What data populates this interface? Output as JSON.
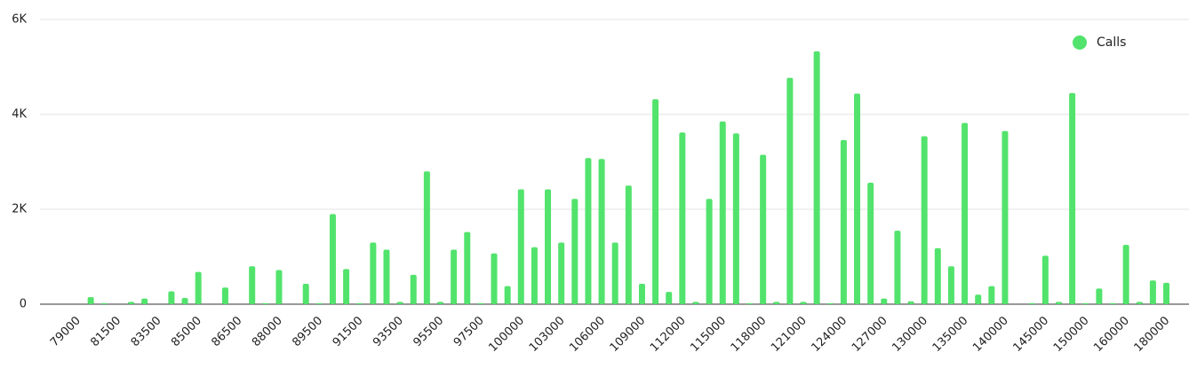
{
  "chart_data": {
    "type": "bar",
    "categories": [
      "79000",
      null,
      null,
      "81500",
      null,
      null,
      "83500",
      null,
      null,
      "85000",
      null,
      null,
      "86500",
      null,
      null,
      "88000",
      null,
      null,
      "89500",
      null,
      null,
      "91500",
      null,
      null,
      "93500",
      null,
      null,
      "95500",
      null,
      null,
      "97500",
      null,
      null,
      "100000",
      null,
      null,
      "103000",
      null,
      null,
      "106000",
      null,
      null,
      "109000",
      null,
      null,
      "112000",
      null,
      null,
      "115000",
      null,
      null,
      "118000",
      null,
      null,
      "121000",
      null,
      null,
      "124000",
      null,
      null,
      "127000",
      null,
      null,
      "130000",
      null,
      null,
      "135000",
      null,
      null,
      "140000",
      null,
      null,
      "145000",
      null,
      null,
      "150000",
      null,
      null,
      "160000",
      null,
      null,
      "180000"
    ],
    "series": [
      {
        "name": "Calls",
        "color": "#52e36c",
        "values": [
          null,
          150,
          20,
          null,
          50,
          120,
          null,
          270,
          130,
          680,
          null,
          350,
          null,
          800,
          20,
          720,
          null,
          430,
          20,
          1900,
          740,
          20,
          1300,
          1150,
          50,
          620,
          2800,
          50,
          1150,
          1520,
          20,
          1070,
          380,
          2420,
          1200,
          2420,
          1300,
          2220,
          3080,
          3060,
          1300,
          2500,
          430,
          4320,
          260,
          3620,
          50,
          2220,
          3850,
          3600,
          20,
          3150,
          50,
          4770,
          50,
          5330,
          20,
          3460,
          4440,
          2560,
          120,
          1550,
          60,
          3540,
          1180,
          800,
          3820,
          200,
          380,
          3650,
          null,
          20,
          1020,
          50,
          4450,
          20,
          330,
          20,
          1250,
          50,
          500,
          450
        ]
      }
    ],
    "ylim": [
      0,
      6000
    ],
    "yticks": [
      0,
      {
        "value": 2000,
        "label": "2K"
      },
      {
        "value": 4000,
        "label": "4K"
      },
      {
        "value": 6000,
        "label": "6K"
      }
    ],
    "grid": true,
    "legend": "top-right"
  }
}
